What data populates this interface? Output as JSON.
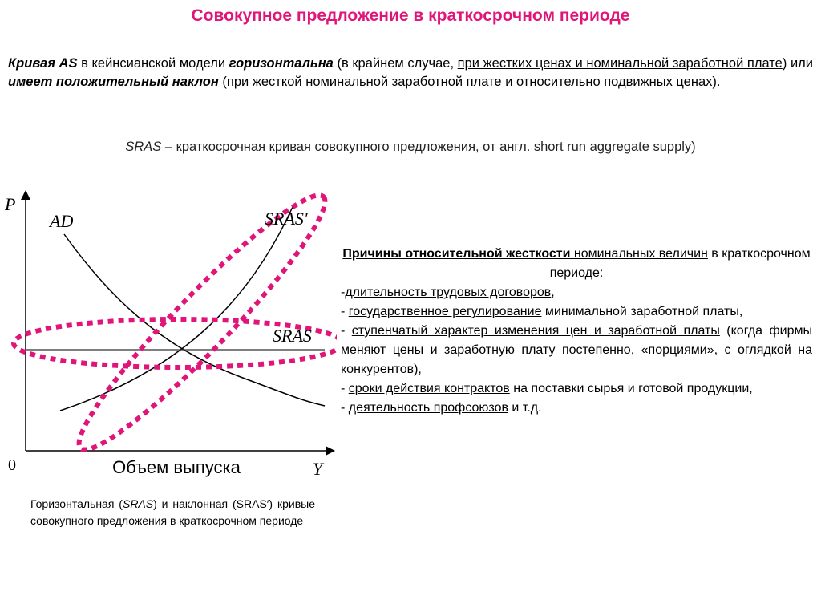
{
  "title": "Совокупное предложение в краткосрочном периоде",
  "intro": [
    "Кривая AS",
    " в кейнсианской модели ",
    "горизонтальна",
    " (в крайнем случае, ",
    "при жестких ценах и номинальной заработной плате",
    ") или ",
    "имеет положительный наклон",
    " (",
    "при жесткой номинальной заработной плате и относительно подвижных ценах",
    ")."
  ],
  "definition": [
    "SRAS",
    " – краткосрочная кривая совокупного предложения, от англ. short run aggregate supply)"
  ],
  "graph": {
    "y_axis": "P",
    "x_axis": "Y",
    "origin": "0",
    "x_caption": "Объем выпуска",
    "curves": {
      "ad": "AD",
      "sras_prime": "SRAS′",
      "sras": "SRAS"
    }
  },
  "caption": [
    "Горизонтальная (",
    "SRAS",
    ") и наклонная (SRAS′) кривые совокупного предложения в краткосрочном периоде"
  ],
  "reasons": {
    "heading": [
      "Причины относительной жесткости",
      " номинальных величин",
      " в краткосрочном периоде:"
    ],
    "items": [
      [
        "-",
        "длительность трудовых договоров",
        ","
      ],
      [
        "- ",
        "государственное регулирование",
        " минимальной заработной платы,"
      ],
      [
        "- ",
        "ступенчатый характер изменения цен и заработной платы",
        " (когда фирмы меняют цены и заработную плату постепенно, «порциями», с оглядкой на конкурентов),"
      ],
      [
        "- ",
        "сроки действия контрактов",
        " на поставки сырья и готовой продукции,"
      ],
      [
        "- ",
        "деятельность профсоюзов",
        " и т.д."
      ]
    ]
  }
}
